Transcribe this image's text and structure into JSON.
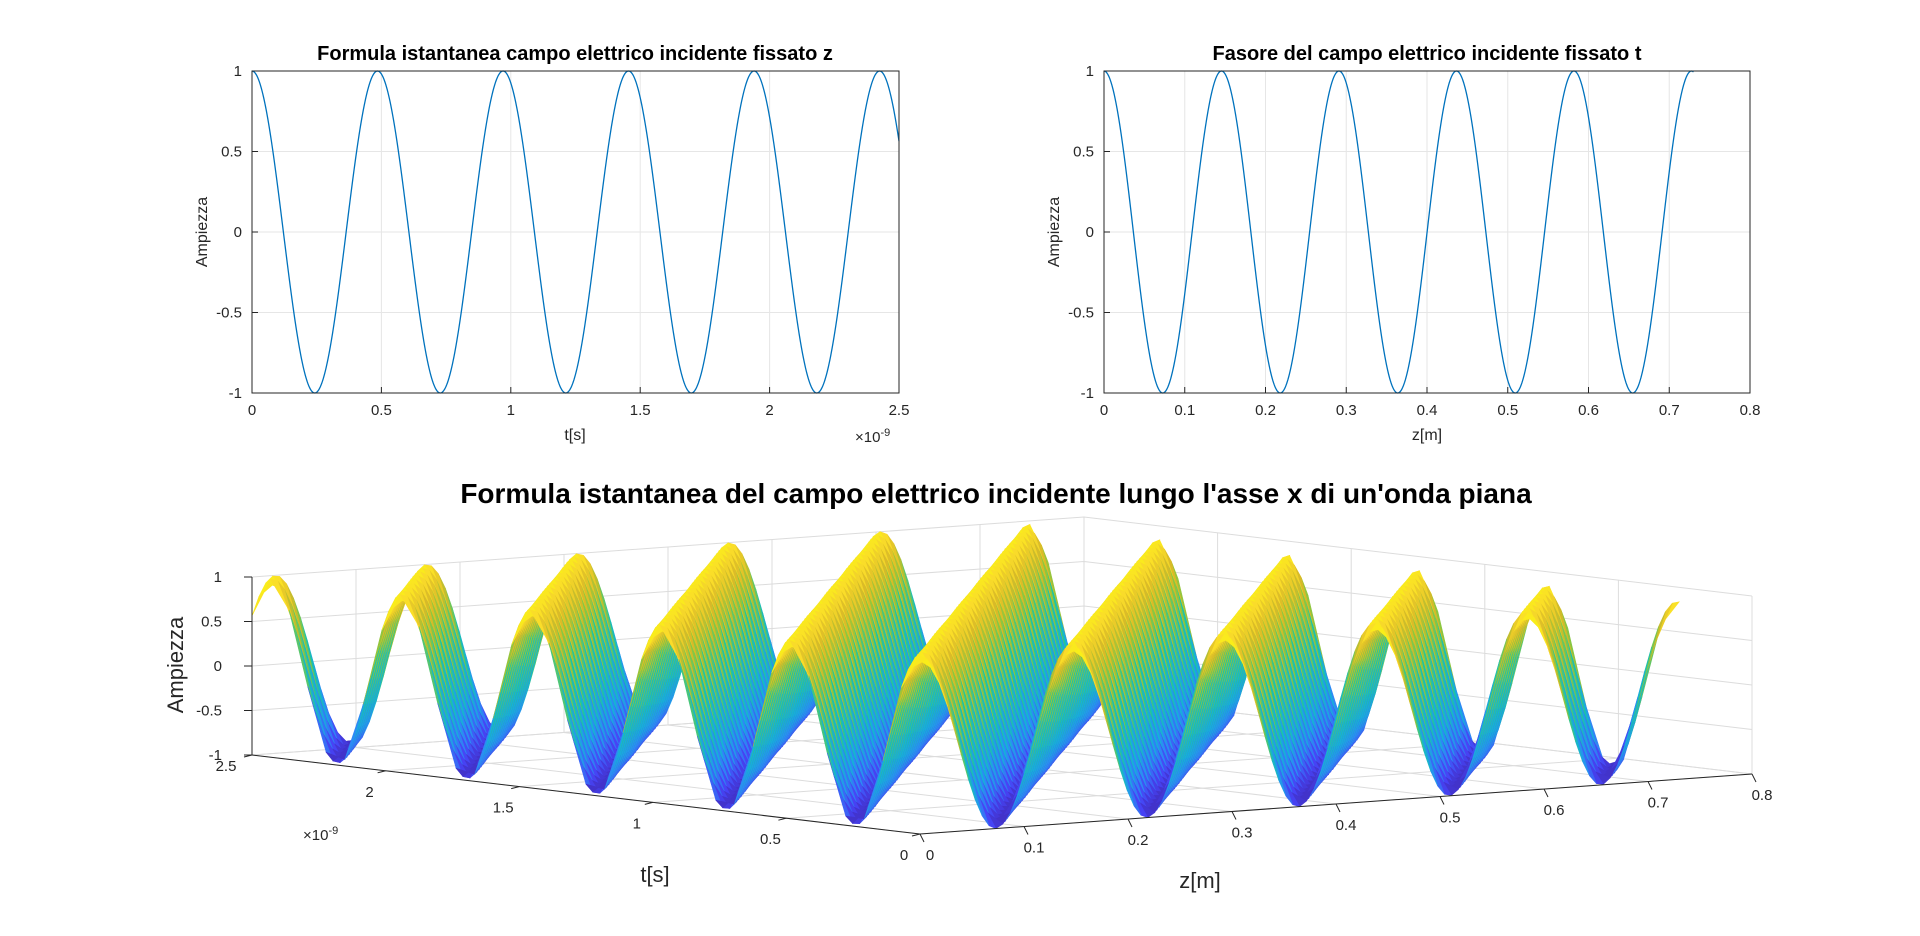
{
  "chart_data": [
    {
      "type": "line",
      "title": "Formula istantanea campo elettrico incidente fissato z",
      "xlabel": "t[s]",
      "ylabel": "Ampiezza",
      "x_exponent_label": "×10",
      "x_exponent_power": "-9",
      "xlim": [
        0,
        2.5e-09
      ],
      "ylim": [
        -1,
        1
      ],
      "grid": true,
      "xticks": [
        "0",
        "0.5",
        "1",
        "1.5",
        "2",
        "2.5"
      ],
      "yticks": [
        "-1",
        "-0.5",
        "0",
        "0.5",
        "1"
      ],
      "series": [
        {
          "function": "cos",
          "amplitude": 1,
          "period": 4.85e-10,
          "x_start": 0,
          "x_end": 2.5e-09,
          "color": "#0072BD"
        }
      ]
    },
    {
      "type": "line",
      "title": "Fasore del campo elettrico incidente fissato t",
      "xlabel": "z[m]",
      "ylabel": "Ampiezza",
      "xlim": [
        0,
        0.8
      ],
      "ylim": [
        -1,
        1
      ],
      "grid": true,
      "xticks": [
        "0",
        "0.1",
        "0.2",
        "0.3",
        "0.4",
        "0.5",
        "0.6",
        "0.7",
        "0.8"
      ],
      "yticks": [
        "-1",
        "-0.5",
        "0",
        "0.5",
        "1"
      ],
      "series": [
        {
          "function": "cos",
          "amplitude": 1,
          "period": 0.1455,
          "x_start": 0,
          "x_end": 0.73,
          "color": "#0072BD"
        }
      ]
    },
    {
      "type": "surface",
      "title": "Formula istantanea del campo elettrico incidente lungo l'asse x di un'onda piana",
      "xlabel": "z[m]",
      "ylabel": "t[s]",
      "zlabel": "Ampiezza",
      "y_exponent_label": "×10",
      "y_exponent_power": "-9",
      "xlim": [
        0,
        0.8
      ],
      "ylim": [
        0,
        2.5e-09
      ],
      "zlim": [
        -1,
        1
      ],
      "grid": true,
      "xticks": [
        "0",
        "0.1",
        "0.2",
        "0.3",
        "0.4",
        "0.5",
        "0.6",
        "0.7",
        "0.8"
      ],
      "yticks": [
        "0",
        "0.5",
        "1",
        "1.5",
        "2",
        "2.5"
      ],
      "zticks": [
        "-1",
        "-0.5",
        "0",
        "0.5",
        "1"
      ],
      "surface": {
        "function": "cos(2π(z/λ − t/T))",
        "wavelength": 0.1455,
        "period": 4.85e-10,
        "z_end": 0.73,
        "t_end": 2.5e-09
      },
      "colormap": [
        "#3E26A8",
        "#4743F5",
        "#2D8AF5",
        "#16B0D9",
        "#1FC5A0",
        "#8CC63F",
        "#D9BA28",
        "#FADC2A",
        "#F9FB0E"
      ]
    }
  ]
}
